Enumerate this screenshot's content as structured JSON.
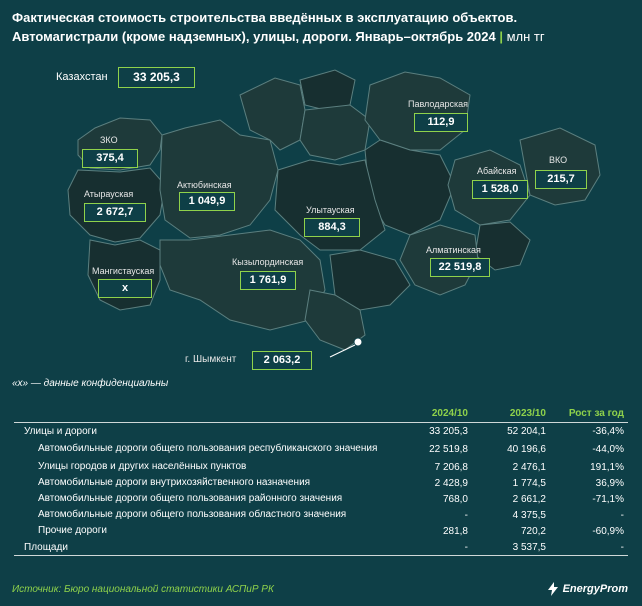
{
  "title": {
    "line1": "Фактическая стоимость строительства введённых в эксплуатацию объектов.",
    "line2": "Автомагистрали (кроме надземных), улицы, дороги. Январь–октябрь 2024",
    "separator": "|",
    "unit": "млн тг"
  },
  "total": {
    "label": "Казахстан",
    "value": "33 205,3"
  },
  "regions": [
    {
      "name": "ЗКО",
      "value": "375,4"
    },
    {
      "name": "Атырауская",
      "value": "2 672,7"
    },
    {
      "name": "Актюбинская",
      "value": "1 049,9"
    },
    {
      "name": "Мангистауская",
      "value": "x"
    },
    {
      "name": "Кызылординская",
      "value": "1 761,9"
    },
    {
      "name": "Улытауская",
      "value": "884,3"
    },
    {
      "name": "Павлодарская",
      "value": "112,9"
    },
    {
      "name": "Абайская",
      "value": "1 528,0"
    },
    {
      "name": "ВКО",
      "value": "215,7"
    },
    {
      "name": "Алматинская",
      "value": "22 519,8"
    },
    {
      "name": "г. Шымкент",
      "value": "2 063,2"
    }
  ],
  "note": "«x» — данные конфиденциальны",
  "table": {
    "headers": [
      "",
      "2024/10",
      "2023/10",
      "Рост за год"
    ],
    "rows": [
      {
        "label": "Улицы и дороги",
        "c1": "33 205,3",
        "c2": "52 204,1",
        "c3": "-36,4%"
      },
      {
        "label": "Автомобильные дороги общего пользования республиканского значения",
        "c1": "22 519,8",
        "c2": "40 196,6",
        "c3": "-44,0%"
      },
      {
        "label": "Улицы городов и других населённых пунктов",
        "c1": "7 206,8",
        "c2": "2 476,1",
        "c3": "191,1%"
      },
      {
        "label": "Автомобильные дороги внутрихозяйственного назначения",
        "c1": "2 428,9",
        "c2": "1 774,5",
        "c3": "36,9%"
      },
      {
        "label": "Автомобильные дороги общего пользования районного значения",
        "c1": "768,0",
        "c2": "2 661,2",
        "c3": "-71,1%"
      },
      {
        "label": "Автомобильные дороги общего пользования областного значения",
        "c1": "-",
        "c2": "4 375,5",
        "c3": "-"
      },
      {
        "label": "Прочие дороги",
        "c1": "281,8",
        "c2": "720,2",
        "c3": "-60,9%"
      },
      {
        "label": "Площади",
        "c1": "-",
        "c2": "3 537,5",
        "c3": "-"
      }
    ]
  },
  "footer": {
    "source": "Источник: Бюро национальной статистики АСПиР РК",
    "brand": "EnergyProm"
  },
  "colors": {
    "background": "#0e3f47",
    "accent": "#8fd24b",
    "region": "#1e3a3a"
  }
}
